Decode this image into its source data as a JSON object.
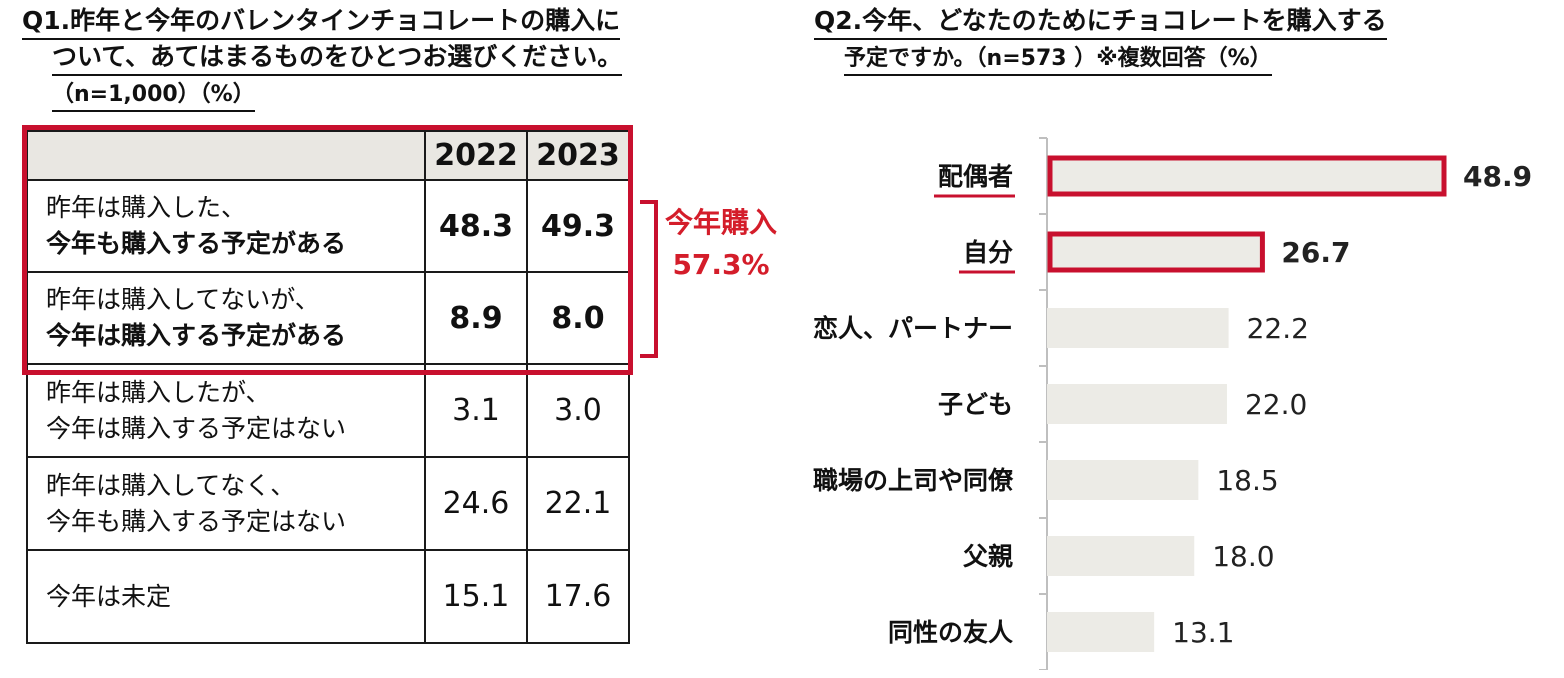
{
  "q1": {
    "title_line1": "Q1.昨年と今年のバレンタインチョコレートの購入に",
    "title_line2": "ついて、あてはまるものをひとつお選びください。",
    "title_line3": "（n=1,000）（%）",
    "columns": [
      "",
      "2022",
      "2023"
    ],
    "rows": [
      {
        "line1": "昨年は購入した、",
        "line2": "今年も購入する予定がある",
        "v2022": "48.3",
        "v2023": "49.3"
      },
      {
        "line1": "昨年は購入してないが、",
        "line2": "今年は購入する予定がある",
        "v2022": "8.9",
        "v2023": "8.0"
      },
      {
        "line1": "昨年は購入したが、",
        "line2": "今年は購入する予定はない",
        "v2022": "3.1",
        "v2023": "3.0"
      },
      {
        "line1": "昨年は購入してなく、",
        "line2": "今年も購入する予定はない",
        "v2022": "24.6",
        "v2023": "22.1"
      },
      {
        "line1": "今年は未定",
        "line2": "",
        "v2022": "15.1",
        "v2023": "17.6"
      }
    ],
    "annotation_line1": "今年購入",
    "annotation_line2": "57.3%"
  },
  "q2": {
    "title_line1": "Q2.今年、どなたのためにチョコレートを購入する",
    "title_line2": "予定ですか。（n=573 ）※複数回答（%）"
  },
  "chart_data": {
    "type": "bar",
    "orientation": "horizontal",
    "categories": [
      "配偶者",
      "自分",
      "恋人、パートナー",
      "子ども",
      "職場の上司や同僚",
      "父親",
      "同性の友人"
    ],
    "values": [
      48.9,
      26.7,
      22.2,
      22.0,
      18.5,
      18.0,
      13.1
    ],
    "value_labels": [
      "48.9",
      "26.7",
      "22.2",
      "22.0",
      "18.5",
      "18.0",
      "13.1"
    ],
    "highlighted": [
      "配偶者",
      "自分"
    ],
    "bar_color": "#ecebe6",
    "highlight_color": "#c8102e",
    "xlim": [
      0,
      52
    ]
  },
  "colors": {
    "accent_red": "#c8102e",
    "annotation_red": "#d41d2a",
    "header_fill": "#e9e7e2"
  }
}
